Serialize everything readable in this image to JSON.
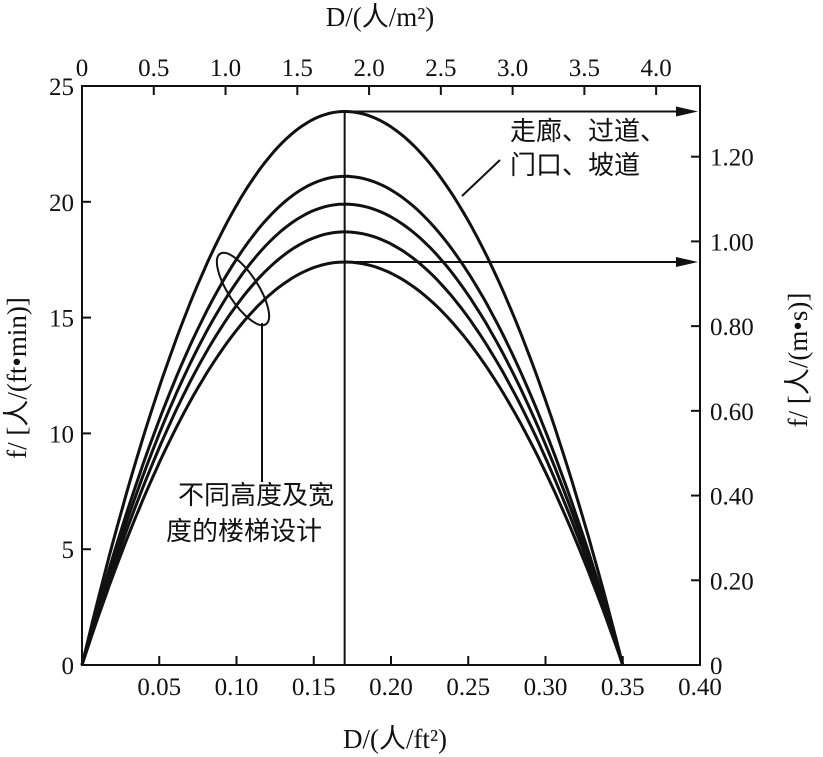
{
  "chart_data": {
    "type": "line",
    "x": [
      0,
      0.1,
      0.17,
      0.25,
      0.35
    ],
    "series": [
      {
        "values": [
          0,
          19.6,
          23.9,
          19.4,
          0
        ]
      },
      {
        "values": [
          0,
          17.3,
          21.1,
          17.1,
          0
        ]
      },
      {
        "values": [
          0,
          16.3,
          19.9,
          16.1,
          0
        ]
      },
      {
        "values": [
          0,
          15.3,
          18.7,
          15.2,
          0
        ]
      },
      {
        "values": [
          0,
          14.2,
          17.4,
          14.1,
          0
        ]
      }
    ],
    "xlim": [
      0,
      0.4
    ],
    "ylim": [
      0,
      25
    ],
    "xlabel": "D/(人/ft²)",
    "ylabel": "f/ [人/(ft•min)]",
    "x_ticks": [
      "0.05",
      "0.10",
      "0.15",
      "0.20",
      "0.25",
      "0.30",
      "0.35",
      "0.40"
    ],
    "y_ticks": [
      "0",
      "5",
      "10",
      "15",
      "20",
      "25"
    ],
    "x2label": "D/(人/m²)",
    "x2_ticks": [
      "0",
      "0.5",
      "1.0",
      "1.5",
      "2.0",
      "2.5",
      "3.0",
      "3.5",
      "4.0"
    ],
    "y2label": "f/ [人/(m•s)]",
    "y2_ticks": [
      "0",
      "0.20",
      "0.40",
      "0.60",
      "0.80",
      "1.00",
      "1.20"
    ],
    "y2_tick_values": [
      0,
      0.2,
      0.4,
      0.6,
      0.8,
      1.0,
      1.2
    ],
    "y2_scale_ft_min_per_m_s": 18.29,
    "peak_x": 0.17,
    "annotations": {
      "corridor_line1": "走廊、过道、",
      "corridor_line2": "门口、坡道",
      "stairs_line1": "不同高度及宽",
      "stairs_line2": "度的楼梯设计"
    },
    "grid": false,
    "legend": "none"
  }
}
